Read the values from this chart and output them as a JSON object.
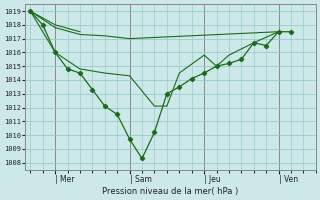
{
  "xlabel": "Pression niveau de la mer( hPa )",
  "ylim": [
    1007.5,
    1019.5
  ],
  "yticks": [
    1008,
    1009,
    1010,
    1011,
    1012,
    1013,
    1014,
    1015,
    1016,
    1017,
    1018,
    1019
  ],
  "xtick_labels": [
    "| Mer",
    "| Sam",
    "| Jeu",
    "| Ven"
  ],
  "xtick_positions": [
    1,
    4,
    7,
    10
  ],
  "background_color": "#cce8e8",
  "grid_color": "#99cccc",
  "line_color": "#1a6b1a",
  "marker_color": "#1a6b1a",
  "series": [
    {
      "x": [
        0,
        1,
        2
      ],
      "y": [
        1019,
        1018,
        1017.5
      ],
      "marker": false
    },
    {
      "x": [
        0,
        1,
        2,
        3,
        4,
        10
      ],
      "y": [
        1019,
        1017.8,
        1017.3,
        1017.2,
        1017.0,
        1017.5
      ],
      "marker": false
    },
    {
      "x": [
        0,
        1,
        2,
        3,
        4,
        5,
        5.5,
        6,
        7,
        7.5,
        8,
        9,
        10
      ],
      "y": [
        1019,
        1016.0,
        1014.8,
        1014.5,
        1014.3,
        1012.1,
        1012.1,
        1014.5,
        1015.8,
        1015.0,
        1015.8,
        1016.7,
        1017.5
      ],
      "marker": false
    },
    {
      "x": [
        0,
        0.5,
        1,
        1.5,
        2,
        2.5,
        3,
        3.5,
        4,
        4.5,
        5,
        5.5,
        6,
        6.5,
        7,
        7.5,
        8,
        8.5,
        9,
        9.5,
        10,
        10.5
      ],
      "y": [
        1019,
        1018,
        1016,
        1014.8,
        1014.5,
        1013.3,
        1012.1,
        1011.5,
        1009.7,
        1008.3,
        1010.2,
        1013.0,
        1013.5,
        1014.1,
        1014.5,
        1015.0,
        1015.2,
        1015.5,
        1016.7,
        1016.5,
        1017.5,
        1017.5
      ],
      "marker": true
    }
  ],
  "vlines": [
    1,
    4,
    7,
    10
  ],
  "figsize": [
    3.2,
    2.0
  ],
  "dpi": 100
}
